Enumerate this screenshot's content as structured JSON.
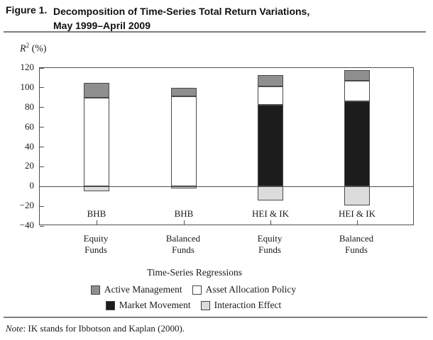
{
  "header": {
    "figure_label": "Figure 1.",
    "title_line1": "Decomposition of Time-Series Total Return Variations,",
    "title_line2": "May 1999–April 2009"
  },
  "axis": {
    "ylabel_base": "R",
    "ylabel_sup": "2",
    "ylabel_suffix": " (%)"
  },
  "chart_data": {
    "type": "bar",
    "stacked": true,
    "title": "Decomposition of Time-Series Total Return Variations, May 1999–April 2009",
    "ylabel": "R2 (%)",
    "xlabel": "Time-Series Regressions",
    "ylim": [
      -40,
      120
    ],
    "yticks": [
      120,
      100,
      80,
      60,
      40,
      20,
      0,
      -20,
      -40
    ],
    "grid": false,
    "zero_line": true,
    "legend_position": "bottom",
    "colors": {
      "active": "#8f8f8f",
      "policy": "#ffffff",
      "market": "#1c1c1c",
      "interaction": "#dcdcdc"
    },
    "bars": [
      {
        "group": "BHB",
        "category_lines": [
          "Equity",
          "Funds"
        ],
        "segments": [
          {
            "series": "policy",
            "from": 0,
            "to": 90
          },
          {
            "series": "active",
            "from": 90,
            "to": 105
          },
          {
            "series": "interaction",
            "from": 0,
            "to": -5
          }
        ]
      },
      {
        "group": "BHB",
        "category_lines": [
          "Balanced",
          "Funds"
        ],
        "segments": [
          {
            "series": "policy",
            "from": 0,
            "to": 91
          },
          {
            "series": "active",
            "from": 91,
            "to": 100
          },
          {
            "series": "interaction",
            "from": 0,
            "to": -2
          }
        ]
      },
      {
        "group": "HEI & IK",
        "category_lines": [
          "Equity",
          "Funds"
        ],
        "segments": [
          {
            "series": "market",
            "from": 0,
            "to": 83
          },
          {
            "series": "policy",
            "from": 83,
            "to": 101
          },
          {
            "series": "active",
            "from": 101,
            "to": 113
          },
          {
            "series": "interaction",
            "from": 0,
            "to": -14
          }
        ]
      },
      {
        "group": "HEI & IK",
        "category_lines": [
          "Balanced",
          "Funds"
        ],
        "segments": [
          {
            "series": "market",
            "from": 0,
            "to": 86
          },
          {
            "series": "policy",
            "from": 86,
            "to": 107
          },
          {
            "series": "active",
            "from": 107,
            "to": 118
          },
          {
            "series": "interaction",
            "from": 0,
            "to": -19
          }
        ]
      }
    ],
    "legend_rows": [
      [
        {
          "series": "active",
          "label": "Active Management"
        },
        {
          "series": "policy",
          "label": "Asset Allocation Policy"
        }
      ],
      [
        {
          "series": "market",
          "label": "Market Movement"
        },
        {
          "series": "interaction",
          "label": "Interaction Effect"
        }
      ]
    ]
  },
  "footer": {
    "note_label": "Note",
    "note_text": ": IK stands for Ibbotson and Kaplan (2000)."
  }
}
